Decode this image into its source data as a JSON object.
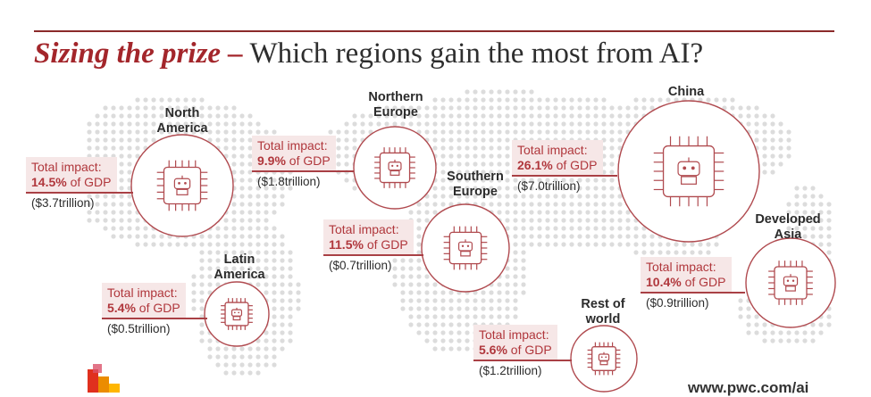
{
  "title": {
    "emphasis": "Sizing the prize –",
    "rest": " Which regions gain the most from AI?"
  },
  "impact_label": "Total impact:",
  "gdp_suffix": " of GDP",
  "regions": [
    {
      "name": "North\nAmerica",
      "gdp_share": "14.5%",
      "value": "($3.7trillion)"
    },
    {
      "name": "Northern\nEurope",
      "gdp_share": "9.9%",
      "value": "($1.8trillion)"
    },
    {
      "name": "Southern\nEurope",
      "gdp_share": "11.5%",
      "value": "($0.7trillion)"
    },
    {
      "name": "China",
      "gdp_share": "26.1%",
      "value": "($7.0trillion)"
    },
    {
      "name": "Developed\nAsia",
      "gdp_share": "10.4%",
      "value": "($0.9trillion)"
    },
    {
      "name": "Latin\nAmerica",
      "gdp_share": "5.4%",
      "value": "($0.5trillion)"
    },
    {
      "name": "Rest of\nworld",
      "gdp_share": "5.6%",
      "value": "($1.2trillion)"
    }
  ],
  "footer": {
    "site": "www.pwc.com/ai"
  },
  "colors": {
    "accent": "#a3262b",
    "box": "#f6e7e7",
    "circle": "#b04a4f"
  },
  "icons": [
    "map-dots-icon",
    "ai-chip-icon",
    "robot-icon",
    "pwc-logo-icon"
  ]
}
